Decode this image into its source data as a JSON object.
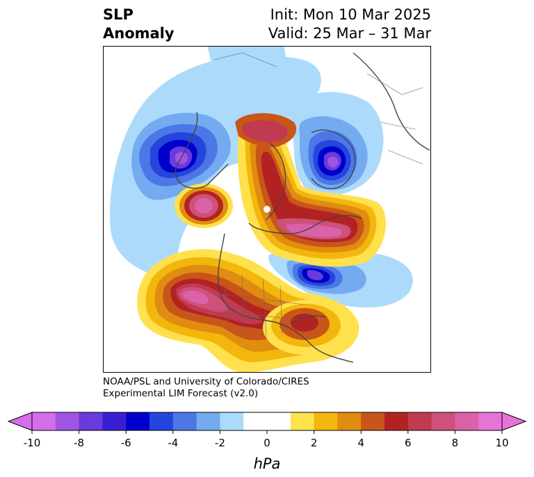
{
  "title": {
    "line1": "SLP",
    "line2": "Anomaly"
  },
  "subtitle": {
    "init": "Init: Mon 10 Mar 2025",
    "valid": "Valid: 25 Mar – 31 Mar"
  },
  "credit": {
    "line1": "NOAA/PSL and University of Colorado/CIRES",
    "line2": "Experimental LIM Forecast (v2.0)"
  },
  "colorbar": {
    "label": "hPa",
    "ticks": [
      "-10",
      "-8",
      "-6",
      "-4",
      "-2",
      "0",
      "2",
      "4",
      "6",
      "8",
      "10"
    ],
    "bins": [
      "#d36ee8",
      "#a055e2",
      "#6a3bdb",
      "#3a1fd2",
      "#0000cc",
      "#2545dd",
      "#4c77e6",
      "#74aaf0",
      "#acdafb",
      "#ffffff",
      "#ffffff",
      "#ffe14d",
      "#f3b60c",
      "#e08c10",
      "#c85519",
      "#b22222",
      "#c03a50",
      "#cd5178",
      "#d962a8",
      "#e673d6"
    ]
  }
}
